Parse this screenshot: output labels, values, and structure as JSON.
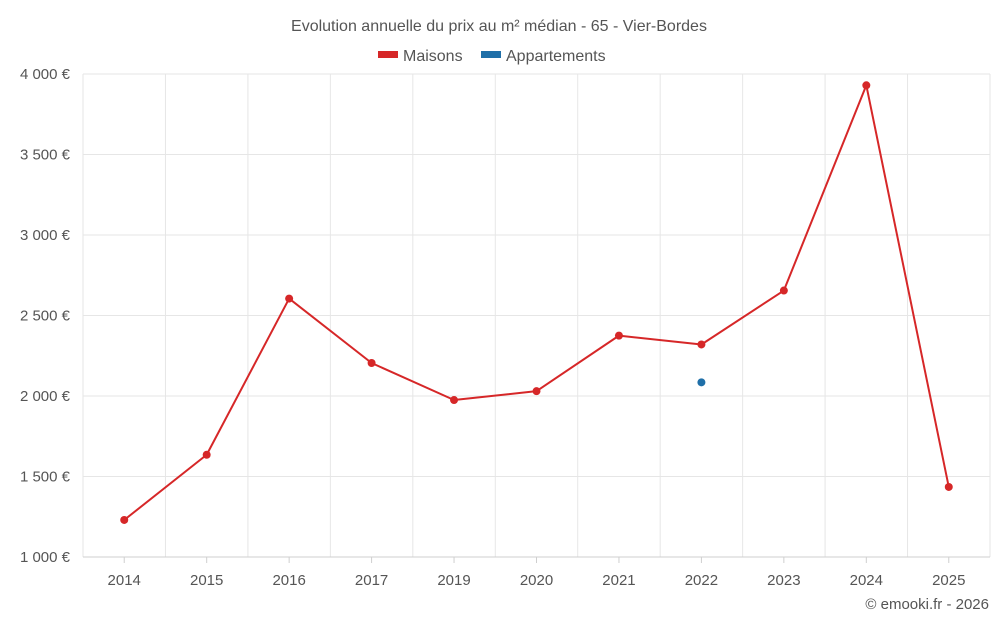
{
  "chart_data": {
    "type": "line",
    "title": "Evolution annuelle du prix au m² médian - 65 - Vier-Bordes",
    "categories": [
      "2014",
      "2015",
      "2016",
      "2017",
      "2019",
      "2020",
      "2021",
      "2022",
      "2023",
      "2024",
      "2025"
    ],
    "series": [
      {
        "name": "Maisons",
        "color": "#d62728",
        "values": [
          1230,
          1635,
          2605,
          2205,
          1975,
          2030,
          2375,
          2320,
          2655,
          3930,
          1435
        ]
      },
      {
        "name": "Appartements",
        "color": "#1f6fa8",
        "values": [
          null,
          null,
          null,
          null,
          null,
          null,
          null,
          2085,
          null,
          null,
          null
        ]
      }
    ],
    "ylim": [
      1000,
      4000
    ],
    "yticks": [
      1000,
      1500,
      2000,
      2500,
      3000,
      3500,
      4000
    ],
    "ytick_labels": [
      "1 000 €",
      "1 500 €",
      "2 000 €",
      "2 500 €",
      "3 000 €",
      "3 500 €",
      "4 000 €"
    ],
    "xlabel": "",
    "ylabel": "",
    "grid": true,
    "legend_position": "top-center"
  },
  "credit": "© emooki.fr - 2026"
}
